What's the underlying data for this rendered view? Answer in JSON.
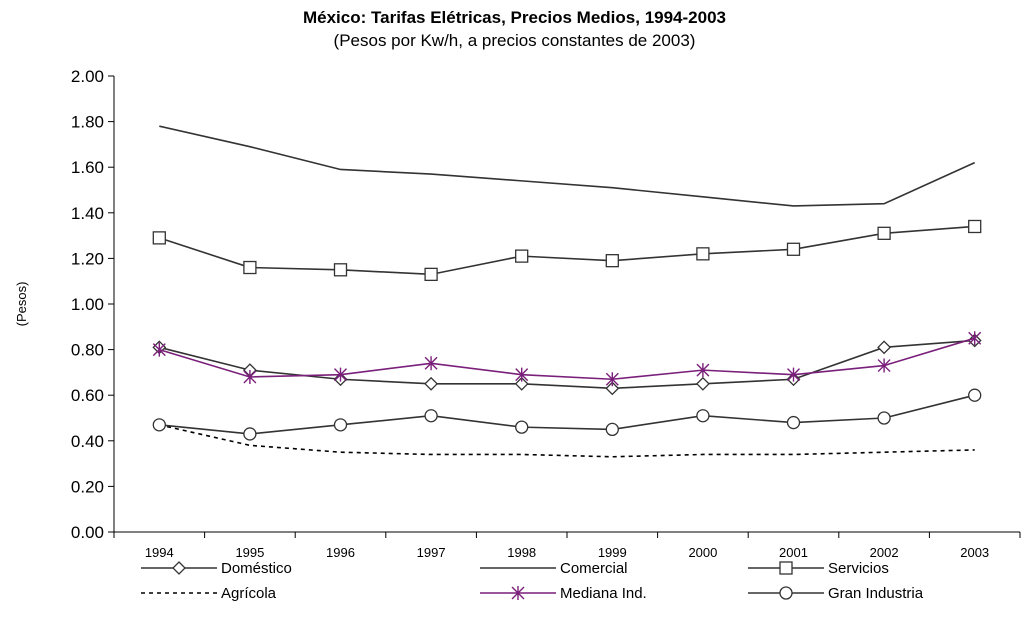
{
  "chart_data": {
    "type": "line",
    "title": "México: Tarifas Elétricas, Precios Medios, 1994-2003",
    "subtitle": "(Pesos por Kw/h, a precios constantes de 2003)",
    "xlabel": "",
    "ylabel": "(Pesos)",
    "ylim": [
      0,
      2
    ],
    "y_ticks": [
      "0.00",
      "0.20",
      "0.40",
      "0.60",
      "0.80",
      "1.00",
      "1.20",
      "1.40",
      "1.60",
      "1.80",
      "2.00"
    ],
    "categories": [
      "1994",
      "1995",
      "1996",
      "1997",
      "1998",
      "1999",
      "2000",
      "2001",
      "2002",
      "2003"
    ],
    "grid": false,
    "legend_position": "bottom",
    "series": [
      {
        "name": "Doméstico",
        "marker": "diamond",
        "style": "solid",
        "color": "#333333",
        "values": [
          0.81,
          0.71,
          0.67,
          0.65,
          0.65,
          0.63,
          0.65,
          0.67,
          0.81,
          0.84
        ]
      },
      {
        "name": "Comercial",
        "marker": "none",
        "style": "solid",
        "color": "#333333",
        "values": [
          1.78,
          1.69,
          1.59,
          1.57,
          1.54,
          1.51,
          1.47,
          1.43,
          1.44,
          1.62
        ]
      },
      {
        "name": "Servicios",
        "marker": "square",
        "style": "solid",
        "color": "#333333",
        "values": [
          1.29,
          1.16,
          1.15,
          1.13,
          1.21,
          1.19,
          1.22,
          1.24,
          1.31,
          1.34
        ]
      },
      {
        "name": "Agrícola",
        "marker": "none",
        "style": "dashed",
        "color": "#000000",
        "values": [
          0.47,
          0.38,
          0.35,
          0.34,
          0.34,
          0.33,
          0.34,
          0.34,
          0.35,
          0.36
        ]
      },
      {
        "name": "Mediana Ind.",
        "marker": "star",
        "style": "solid",
        "color": "#7a1f7a",
        "values": [
          0.8,
          0.68,
          0.69,
          0.74,
          0.69,
          0.67,
          0.71,
          0.69,
          0.73,
          0.85
        ]
      },
      {
        "name": "Gran Industria",
        "marker": "circle",
        "style": "solid",
        "color": "#333333",
        "values": [
          0.47,
          0.43,
          0.47,
          0.51,
          0.46,
          0.45,
          0.51,
          0.48,
          0.5,
          0.6
        ]
      }
    ]
  }
}
